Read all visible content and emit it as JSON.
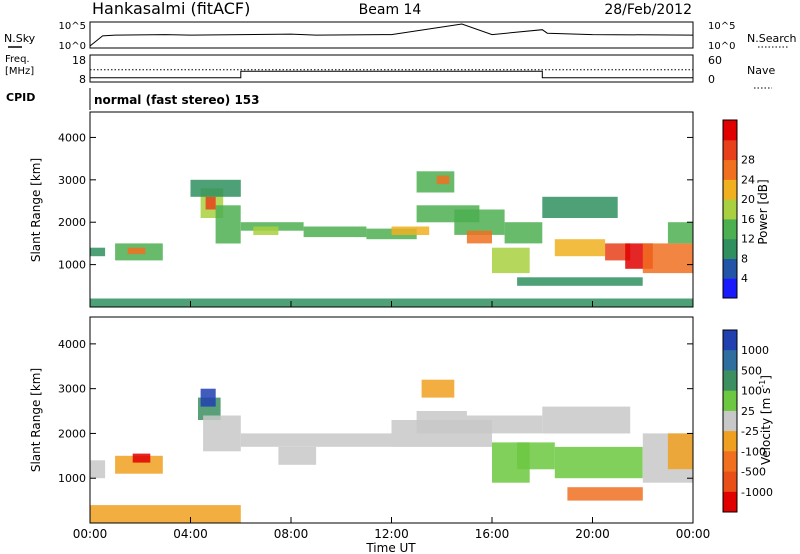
{
  "header": {
    "station": "Hankasalmi (fitACF)",
    "beam": "Beam 14",
    "date": "28/Feb/2012"
  },
  "noise_panel": {
    "left_label": "N.Sky",
    "right_label": "N.Search",
    "ticks_left": [
      "10^5",
      "10^0"
    ],
    "ticks_right": [
      "10^5",
      "10^0"
    ]
  },
  "freq_panel": {
    "left_label_1": "Freq.",
    "left_label_2": "[MHz]",
    "right_label": "Nave",
    "ticks_left": [
      "18",
      "8"
    ],
    "ticks_right": [
      "60",
      "0"
    ]
  },
  "cpid": {
    "label": "CPID",
    "value": "normal (fast stereo) 153"
  },
  "x_axis": {
    "title": "Time UT",
    "ticks": [
      "00:00",
      "04:00",
      "08:00",
      "12:00",
      "16:00",
      "20:00",
      "00:00"
    ]
  },
  "y_axis": {
    "title": "Slant Range [km]",
    "ticks": [
      "1000",
      "2000",
      "3000",
      "4000"
    ]
  },
  "power_colorbar": {
    "title": "Power [dB]",
    "labels": [
      "4",
      "8",
      "12",
      "16",
      "20",
      "24",
      "28"
    ],
    "colors": [
      "#1a1aff",
      "#2255a8",
      "#2f8f5f",
      "#4caf50",
      "#a8d040",
      "#f0b020",
      "#f07020",
      "#e8401a",
      "#e00000"
    ]
  },
  "velocity_colorbar": {
    "title": "Velocity [m s",
    "title_sup": "-1",
    "title_end": "]",
    "labels": [
      "1000",
      "500",
      "100",
      "25",
      "-25",
      "-100",
      "-500",
      "-1000"
    ],
    "colors": [
      "#2040b0",
      "#2f6fa0",
      "#3c8f60",
      "#6cc840",
      "#c8c8c8",
      "#f0a020",
      "#f07020",
      "#e85018",
      "#e00000"
    ]
  },
  "chart_data": [
    {
      "type": "heatmap",
      "name": "power",
      "x_units": "hours UT",
      "y_units": "km",
      "xlim": [
        0,
        24
      ],
      "ylim": [
        0,
        4600
      ],
      "colorbar_range": [
        0,
        30
      ],
      "cells": [
        [
          0.0,
          0.6,
          1200,
          1400,
          8
        ],
        [
          1.0,
          2.9,
          1100,
          1500,
          12
        ],
        [
          1.5,
          2.2,
          1250,
          1400,
          20
        ],
        [
          4.4,
          5.3,
          2100,
          2800,
          16
        ],
        [
          4.6,
          5.0,
          2300,
          2600,
          26
        ],
        [
          5.0,
          6.0,
          1500,
          2400,
          12
        ],
        [
          4.0,
          6.0,
          2600,
          3000,
          8
        ],
        [
          6.0,
          8.5,
          1800,
          2000,
          12
        ],
        [
          6.5,
          7.5,
          1700,
          1900,
          16
        ],
        [
          8.5,
          11.0,
          1650,
          1900,
          10
        ],
        [
          11.0,
          13.0,
          1600,
          1850,
          12
        ],
        [
          12.0,
          13.5,
          1700,
          1900,
          18
        ],
        [
          13.0,
          14.5,
          2700,
          3200,
          12
        ],
        [
          13.8,
          14.3,
          2900,
          3100,
          22
        ],
        [
          13.0,
          15.5,
          2000,
          2400,
          10
        ],
        [
          14.5,
          16.5,
          1700,
          2300,
          12
        ],
        [
          15.0,
          16.0,
          1500,
          1800,
          20
        ],
        [
          16.0,
          17.5,
          800,
          1400,
          16
        ],
        [
          16.5,
          18.0,
          1500,
          2000,
          12
        ],
        [
          18.0,
          21.0,
          2100,
          2600,
          8
        ],
        [
          18.5,
          20.5,
          1200,
          1600,
          18
        ],
        [
          20.5,
          21.5,
          1100,
          1500,
          24
        ],
        [
          21.3,
          22.4,
          900,
          1500,
          28
        ],
        [
          22.0,
          24.0,
          800,
          1500,
          22
        ],
        [
          23.0,
          24.0,
          1500,
          2000,
          12
        ],
        [
          0.0,
          24.0,
          0,
          200,
          8
        ],
        [
          17.0,
          22.0,
          500,
          700,
          8
        ]
      ]
    },
    {
      "type": "heatmap",
      "name": "velocity",
      "x_units": "hours UT",
      "y_units": "km",
      "xlim": [
        0,
        24
      ],
      "ylim": [
        0,
        4600
      ],
      "colorbar_range": [
        -1000,
        1000
      ],
      "cells": [
        [
          0.0,
          0.6,
          1000,
          1400,
          -100
        ],
        [
          1.0,
          2.9,
          1100,
          1500,
          -300
        ],
        [
          1.7,
          2.4,
          1350,
          1550,
          -800
        ],
        [
          4.3,
          5.2,
          2300,
          2800,
          500
        ],
        [
          4.4,
          5.0,
          2600,
          3000,
          800
        ],
        [
          4.5,
          6.0,
          1600,
          2400,
          0
        ],
        [
          6.0,
          12.0,
          1700,
          2000,
          0
        ],
        [
          7.5,
          9.0,
          1300,
          1700,
          100
        ],
        [
          12.0,
          16.0,
          1700,
          2300,
          0
        ],
        [
          13.2,
          14.5,
          2800,
          3200,
          -300
        ],
        [
          13.0,
          15.0,
          2000,
          2500,
          100
        ],
        [
          15.0,
          18.0,
          2000,
          2400,
          0
        ],
        [
          16.0,
          17.5,
          900,
          1800,
          150
        ],
        [
          17.0,
          18.5,
          1200,
          1800,
          300
        ],
        [
          18.5,
          22.0,
          1000,
          1700,
          200
        ],
        [
          18.0,
          21.5,
          2000,
          2600,
          0
        ],
        [
          22.0,
          24.0,
          900,
          2000,
          0
        ],
        [
          23.0,
          24.0,
          1200,
          2000,
          -200
        ],
        [
          0.0,
          6.0,
          0,
          400,
          -200
        ],
        [
          19.0,
          22.0,
          500,
          800,
          -400
        ]
      ]
    },
    {
      "type": "line",
      "name": "N.Sky",
      "x_units": "hours UT",
      "x": [
        0,
        0.5,
        1,
        3,
        4,
        8,
        9,
        12,
        14.8,
        16,
        18,
        18.2,
        20,
        24
      ],
      "y": [
        1,
        200,
        300,
        400,
        300,
        500,
        300,
        400,
        100000,
        400,
        5000,
        800,
        400,
        300
      ]
    },
    {
      "type": "line",
      "name": "Freq",
      "x_units": "hours UT",
      "x": [
        0,
        6,
        6,
        18,
        18,
        24
      ],
      "y": [
        9,
        9,
        12,
        12,
        9,
        9
      ]
    },
    {
      "type": "line",
      "name": "Nave",
      "x_units": "hours UT",
      "x": [
        0,
        24
      ],
      "y": [
        28,
        28
      ]
    }
  ]
}
